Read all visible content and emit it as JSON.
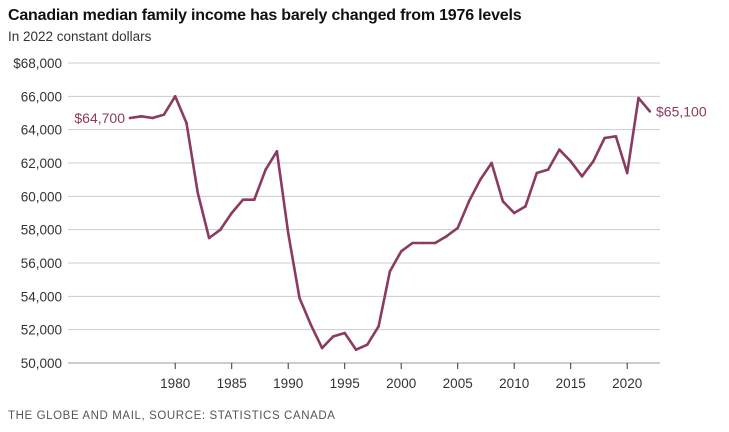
{
  "chart_data": {
    "type": "line",
    "title": "Canadian median family income has barely changed from 1976 levels",
    "subtitle": "In 2022 constant dollars",
    "source": "THE GLOBE AND MAIL, SOURCE: STATISTICS CANADA",
    "xlabel": "",
    "ylabel": "",
    "ylim": [
      50000,
      68000
    ],
    "xlim": [
      1976,
      2022
    ],
    "y_ticks": [
      50000,
      52000,
      54000,
      56000,
      58000,
      60000,
      62000,
      64000,
      66000,
      68000
    ],
    "y_tick_labels": [
      "50,000",
      "52,000",
      "54,000",
      "56,000",
      "58,000",
      "60,000",
      "62,000",
      "64,000",
      "66,000",
      "$68,000"
    ],
    "x_ticks": [
      1980,
      1985,
      1990,
      1995,
      2000,
      2005,
      2010,
      2015,
      2020
    ],
    "x_tick_labels": [
      "1980",
      "1985",
      "1990",
      "1995",
      "2000",
      "2005",
      "2010",
      "2015",
      "2020"
    ],
    "grid": true,
    "color": "#8b3a62",
    "series": [
      {
        "name": "Median family income",
        "x": [
          1976,
          1977,
          1978,
          1979,
          1980,
          1981,
          1982,
          1983,
          1984,
          1985,
          1986,
          1987,
          1988,
          1989,
          1990,
          1991,
          1992,
          1993,
          1994,
          1995,
          1996,
          1997,
          1998,
          1999,
          2000,
          2001,
          2002,
          2003,
          2004,
          2005,
          2006,
          2007,
          2008,
          2009,
          2010,
          2011,
          2012,
          2013,
          2014,
          2015,
          2016,
          2017,
          2018,
          2019,
          2020,
          2021,
          2022
        ],
        "values": [
          64700,
          64800,
          64700,
          64900,
          66000,
          64400,
          60200,
          57500,
          58000,
          59000,
          59800,
          59800,
          61600,
          62700,
          57800,
          53900,
          52300,
          50900,
          51600,
          51800,
          50800,
          51100,
          52200,
          55500,
          56700,
          57200,
          57200,
          57200,
          57600,
          58100,
          59700,
          61000,
          62000,
          59700,
          59000,
          59400,
          61400,
          61600,
          62800,
          62100,
          61200,
          62100,
          63500,
          63600,
          61400,
          65900,
          65100
        ]
      }
    ],
    "annotations": {
      "start": "$64,700",
      "end": "$65,100"
    }
  }
}
